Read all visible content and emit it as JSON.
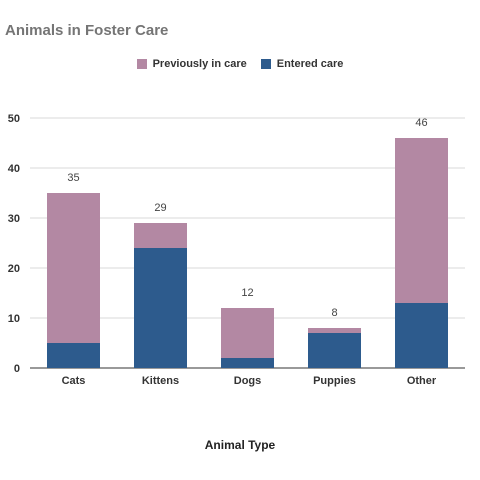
{
  "chart_data": {
    "type": "bar",
    "stacked": true,
    "title": "Animals in Foster Care",
    "xlabel": "Animal Type",
    "ylabel": "",
    "categories": [
      "Cats",
      "Kittens",
      "Dogs",
      "Puppies",
      "Other"
    ],
    "series": [
      {
        "name": "Entered care",
        "values": [
          5,
          24,
          2,
          7,
          13
        ],
        "color": "#2d5b8d"
      },
      {
        "name": "Previously in care",
        "values": [
          30,
          5,
          10,
          1,
          33
        ],
        "color": "#b388a3"
      }
    ],
    "totals": [
      35,
      29,
      12,
      8,
      46
    ],
    "ylim": [
      0,
      50
    ],
    "yticks": [
      0,
      10,
      20,
      30,
      40,
      50
    ],
    "grid": true,
    "legend_position": "top",
    "legend_order": [
      "Previously in care",
      "Entered care"
    ]
  }
}
